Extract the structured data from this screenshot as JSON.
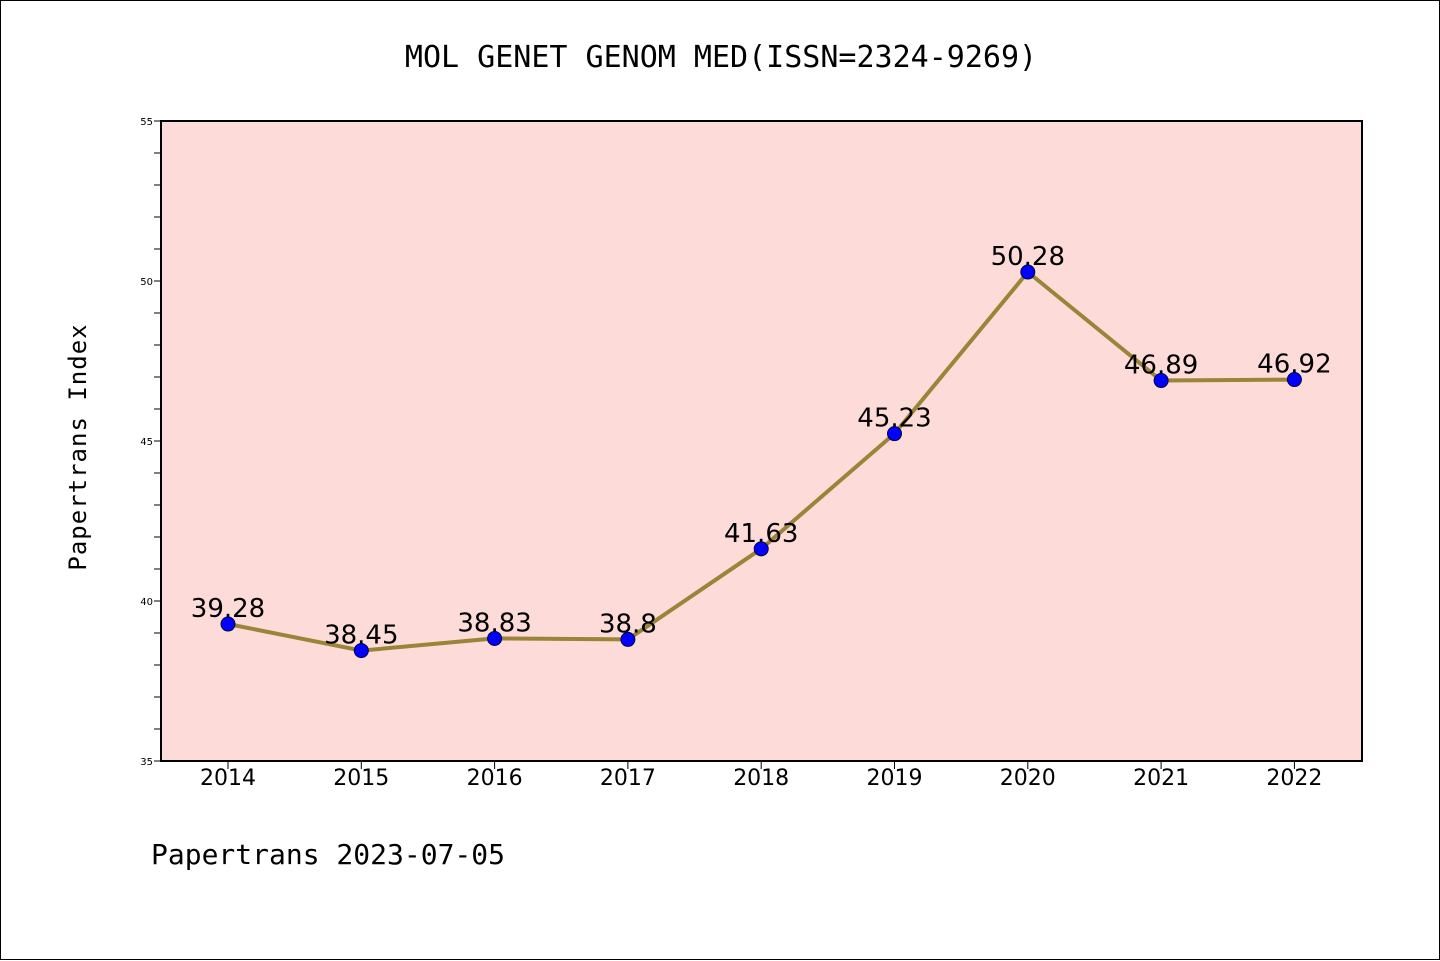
{
  "chart_data": {
    "type": "line",
    "title": "MOL GENET GENOM MED(ISSN=2324-9269)",
    "xlabel": "",
    "ylabel": "Papertrans Index",
    "categories": [
      "2014",
      "2015",
      "2016",
      "2017",
      "2018",
      "2019",
      "2020",
      "2021",
      "2022"
    ],
    "series": [
      {
        "values": [
          39.28,
          38.45,
          38.83,
          38.8,
          41.63,
          45.23,
          50.28,
          46.89,
          46.92
        ],
        "labels": [
          "39.28",
          "38.45",
          "38.83",
          "38.8",
          "41.63",
          "45.23",
          "50.28",
          "46.89",
          "46.92"
        ]
      }
    ],
    "ylim": [
      35,
      55
    ],
    "yticks": [
      "35",
      "40",
      "45",
      "50",
      "55"
    ],
    "grid": false,
    "legend": "none"
  },
  "footer": "Papertrans 2023-07-05",
  "colors": {
    "plot_background": "#fddbd8",
    "line": "#9a8438",
    "marker": "#0000ff"
  }
}
